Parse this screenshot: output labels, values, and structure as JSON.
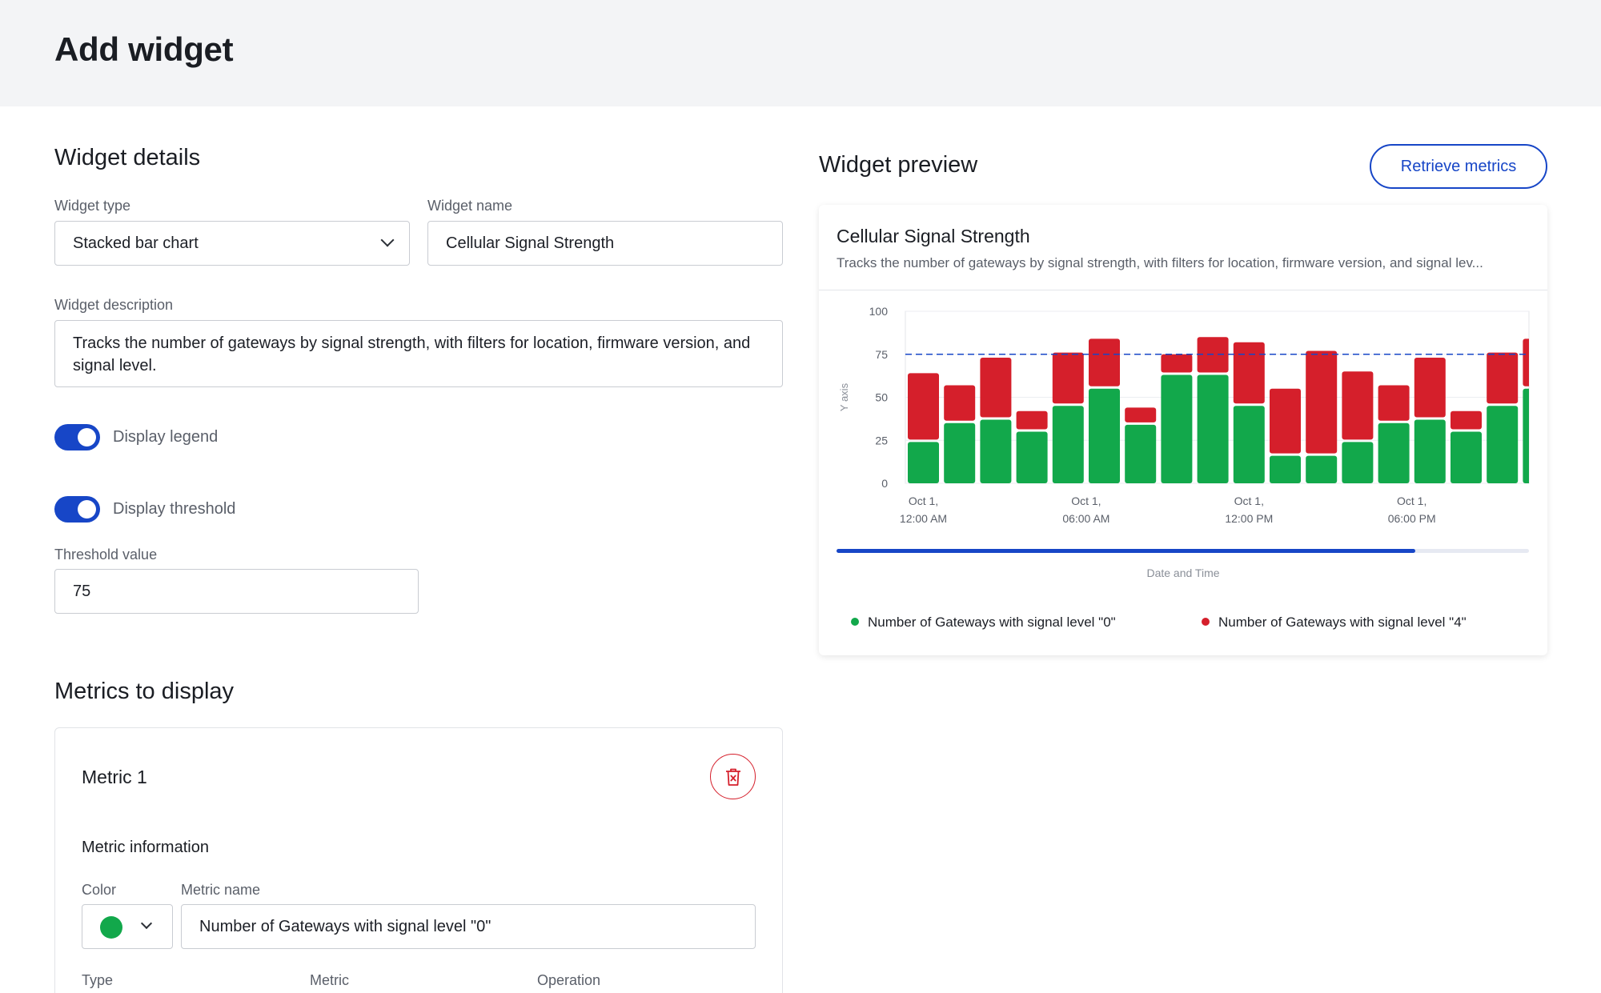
{
  "page": {
    "title": "Add widget"
  },
  "details": {
    "section_title": "Widget details",
    "type_label": "Widget type",
    "type_value": "Stacked bar chart",
    "name_label": "Widget name",
    "name_value": "Cellular Signal Strength",
    "description_label": "Widget description",
    "description_value": "Tracks the number of gateways by signal strength, with filters for location, firmware version, and signal level.",
    "legend_toggle": {
      "label": "Display legend",
      "on": true
    },
    "threshold_toggle": {
      "label": "Display threshold",
      "on": true
    },
    "threshold_label": "Threshold value",
    "threshold_value": "75"
  },
  "metrics": {
    "section_title": "Metrics to display",
    "metric1": {
      "title": "Metric 1",
      "info_title": "Metric information",
      "color_label": "Color",
      "color": "#12a84b",
      "name_label": "Metric name",
      "name_value": "Number of Gateways with signal level \"0\"",
      "type_label": "Type",
      "metric_label": "Metric",
      "operation_label": "Operation"
    }
  },
  "preview": {
    "section_title": "Widget preview",
    "retrieve_button": "Retrieve metrics",
    "chart_title": "Cellular Signal Strength",
    "chart_description": "Tracks the number of gateways by signal strength, with filters for location, firmware version, and signal lev...",
    "colors": {
      "green": "#12a84b",
      "red": "#d51f2b",
      "accent": "#1746c7"
    }
  },
  "chart_data": {
    "type": "bar",
    "stacked": true,
    "ylabel": "Y axis",
    "xlabel": "Date and Time",
    "ylim": [
      0,
      100
    ],
    "yticks": [
      0,
      25,
      50,
      75,
      100
    ],
    "xticks": [
      {
        "line1": "Oct 1,",
        "line2": "12:00 AM",
        "index": 0
      },
      {
        "line1": "Oct 1,",
        "line2": "06:00 AM",
        "index": 4.5
      },
      {
        "line1": "Oct 1,",
        "line2": "12:00 PM",
        "index": 9
      },
      {
        "line1": "Oct 1,",
        "line2": "06:00 PM",
        "index": 13.5
      }
    ],
    "threshold": 75,
    "grid": true,
    "legend": "bottom",
    "series": [
      {
        "name": "Number of Gateways with signal level \"0\"",
        "color": "#12a84b",
        "values": [
          24,
          35,
          37,
          30,
          45,
          55,
          34,
          63,
          63,
          45,
          16,
          16,
          24,
          35,
          37,
          30,
          45,
          55
        ]
      },
      {
        "name": "Number of Gateways with signal level \"4\"",
        "color": "#d51f2b",
        "values": [
          40,
          22,
          36,
          12,
          31,
          29,
          10,
          12,
          22,
          37,
          39,
          61,
          41,
          22,
          36,
          12,
          31,
          29
        ]
      }
    ]
  }
}
